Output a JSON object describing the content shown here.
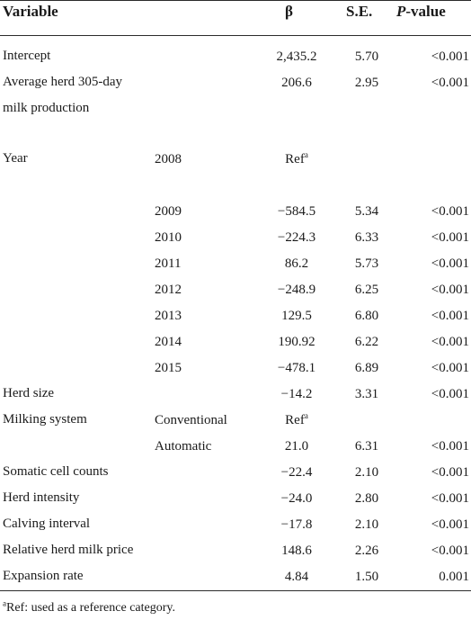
{
  "headers": {
    "variable": "Variable",
    "beta": "β",
    "se": "S.E.",
    "p_italic": "P",
    "p_rest": "-value"
  },
  "rows": [
    {
      "variable": "Intercept",
      "sub": "",
      "beta": "2,435.2",
      "beta_sup": "",
      "se": "5.70",
      "p": "<0.001"
    },
    {
      "variable": "Average herd 305-day milk production",
      "sub": "",
      "beta": "206.6",
      "beta_sup": "",
      "se": "2.95",
      "p": "<0.001"
    },
    {
      "variable": "Year",
      "sub": "2008",
      "beta": "Ref",
      "beta_sup": "a",
      "se": "",
      "p": ""
    },
    {
      "variable": "",
      "sub": "2009",
      "beta": "−584.5",
      "beta_sup": "",
      "se": "5.34",
      "p": "<0.001"
    },
    {
      "variable": "",
      "sub": "2010",
      "beta": "−224.3",
      "beta_sup": "",
      "se": "6.33",
      "p": "<0.001"
    },
    {
      "variable": "",
      "sub": "2011",
      "beta": "86.2",
      "beta_sup": "",
      "se": "5.73",
      "p": "<0.001"
    },
    {
      "variable": "",
      "sub": "2012",
      "beta": "−248.9",
      "beta_sup": "",
      "se": "6.25",
      "p": "<0.001"
    },
    {
      "variable": "",
      "sub": "2013",
      "beta": "129.5",
      "beta_sup": "",
      "se": "6.80",
      "p": "<0.001"
    },
    {
      "variable": "",
      "sub": "2014",
      "beta": "190.92",
      "beta_sup": "",
      "se": "6.22",
      "p": "<0.001"
    },
    {
      "variable": "",
      "sub": "2015",
      "beta": "−478.1",
      "beta_sup": "",
      "se": "6.89",
      "p": "<0.001"
    },
    {
      "variable": "Herd size",
      "sub": "",
      "beta": "−14.2",
      "beta_sup": "",
      "se": "3.31",
      "p": "<0.001"
    },
    {
      "variable": "Milking system",
      "sub": "Conventional",
      "beta": "Ref",
      "beta_sup": "a",
      "se": "",
      "p": ""
    },
    {
      "variable": "",
      "sub": "Automatic",
      "beta": "21.0",
      "beta_sup": "",
      "se": "6.31",
      "p": "<0.001"
    },
    {
      "variable": "Somatic cell counts",
      "sub": "",
      "beta": "−22.4",
      "beta_sup": "",
      "se": "2.10",
      "p": "<0.001"
    },
    {
      "variable": "Herd intensity",
      "sub": "",
      "beta": "−24.0",
      "beta_sup": "",
      "se": "2.80",
      "p": "<0.001"
    },
    {
      "variable": "Calving interval",
      "sub": "",
      "beta": "−17.8",
      "beta_sup": "",
      "se": "2.10",
      "p": "<0.001"
    },
    {
      "variable": "Relative herd milk price",
      "sub": "",
      "beta": "148.6",
      "beta_sup": "",
      "se": "2.26",
      "p": "<0.001"
    },
    {
      "variable": "Expansion rate",
      "sub": "",
      "beta": "4.84",
      "beta_sup": "",
      "se": "1.50",
      "p": "0.001"
    }
  ],
  "footnote": {
    "marker": "a",
    "text": "Ref: used as a reference category."
  }
}
